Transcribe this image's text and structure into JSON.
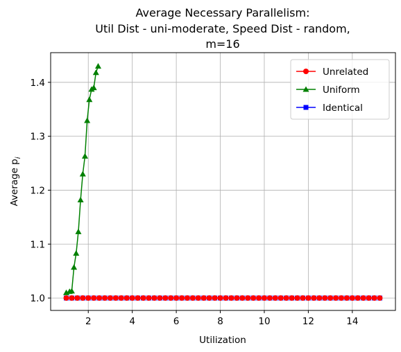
{
  "chart_data": {
    "type": "line",
    "title": [
      "Average Necessary Parallelism:",
      "Util Dist - uni-moderate, Speed Dist - random,",
      "m=16"
    ],
    "xlabel": "Utilization",
    "ylabel": "Average p",
    "ylabel_sub": "i",
    "xlim": [
      0.29,
      15.96
    ],
    "xticks": [
      2,
      4,
      6,
      8,
      10,
      12,
      14
    ],
    "ylim": [
      0.977,
      1.455
    ],
    "yticks": [
      {
        "value": 1.0,
        "label": "1.0"
      },
      1.1,
      1.2,
      1.3,
      1.4
    ],
    "grid": true,
    "legend": "upper right",
    "series": [
      {
        "name": "Identical",
        "color": "#0000ff",
        "marker": "square",
        "x": [
          1,
          1.25,
          1.5,
          1.75,
          2,
          2.25,
          2.5,
          2.75,
          3,
          3.25,
          3.5,
          3.75,
          4,
          4.25,
          4.5,
          4.75,
          5,
          5.25,
          5.5,
          5.75,
          6,
          6.25,
          6.5,
          6.75,
          7,
          7.25,
          7.5,
          7.75,
          8,
          8.25,
          8.5,
          8.75,
          9,
          9.25,
          9.5,
          9.75,
          10,
          10.25,
          10.5,
          10.75,
          11,
          11.25,
          11.5,
          11.75,
          12,
          12.25,
          12.5,
          12.75,
          13,
          13.25,
          13.5,
          13.75,
          14,
          14.25,
          14.5,
          14.75,
          15,
          15.25
        ],
        "values": [
          1,
          1,
          1,
          1,
          1,
          1,
          1,
          1,
          1,
          1,
          1,
          1,
          1,
          1,
          1,
          1,
          1,
          1,
          1,
          1,
          1,
          1,
          1,
          1,
          1,
          1,
          1,
          1,
          1,
          1,
          1,
          1,
          1,
          1,
          1,
          1,
          1,
          1,
          1,
          1,
          1,
          1,
          1,
          1,
          1,
          1,
          1,
          1,
          1,
          1,
          1,
          1,
          1,
          1,
          1,
          1,
          1,
          1
        ]
      },
      {
        "name": "Unrelated",
        "color": "#ff0000",
        "marker": "circle",
        "x": [
          1,
          1.25,
          1.5,
          1.75,
          2,
          2.25,
          2.5,
          2.75,
          3,
          3.25,
          3.5,
          3.75,
          4,
          4.25,
          4.5,
          4.75,
          5,
          5.25,
          5.5,
          5.75,
          6,
          6.25,
          6.5,
          6.75,
          7,
          7.25,
          7.5,
          7.75,
          8,
          8.25,
          8.5,
          8.75,
          9,
          9.25,
          9.5,
          9.75,
          10,
          10.25,
          10.5,
          10.75,
          11,
          11.25,
          11.5,
          11.75,
          12,
          12.25,
          12.5,
          12.75,
          13,
          13.25,
          13.5,
          13.75,
          14,
          14.25,
          14.5,
          14.75,
          15,
          15.25
        ],
        "values": [
          1,
          1,
          1,
          1,
          1,
          1,
          1,
          1,
          1,
          1,
          1,
          1,
          1,
          1,
          1,
          1,
          1,
          1,
          1,
          1,
          1,
          1,
          1,
          1,
          1,
          1,
          1,
          1,
          1,
          1,
          1,
          1,
          1,
          1,
          1,
          1,
          1,
          1,
          1,
          1,
          1,
          1,
          1,
          1,
          1,
          1,
          1,
          1,
          1,
          1,
          1,
          1,
          1,
          1,
          1,
          1,
          1,
          1
        ]
      },
      {
        "name": "Uniform",
        "color": "#008000",
        "marker": "triangle",
        "x": [
          1.0,
          1.15,
          1.25,
          1.35,
          1.45,
          1.55,
          1.65,
          1.75,
          1.85,
          1.95,
          2.05,
          2.15,
          2.25,
          2.35,
          2.45
        ],
        "values": [
          1.01,
          1.012,
          1.013,
          1.057,
          1.083,
          1.123,
          1.182,
          1.23,
          1.263,
          1.329,
          1.368,
          1.387,
          1.39,
          1.418,
          1.43
        ]
      }
    ],
    "legend_order": [
      1,
      2,
      0
    ]
  }
}
